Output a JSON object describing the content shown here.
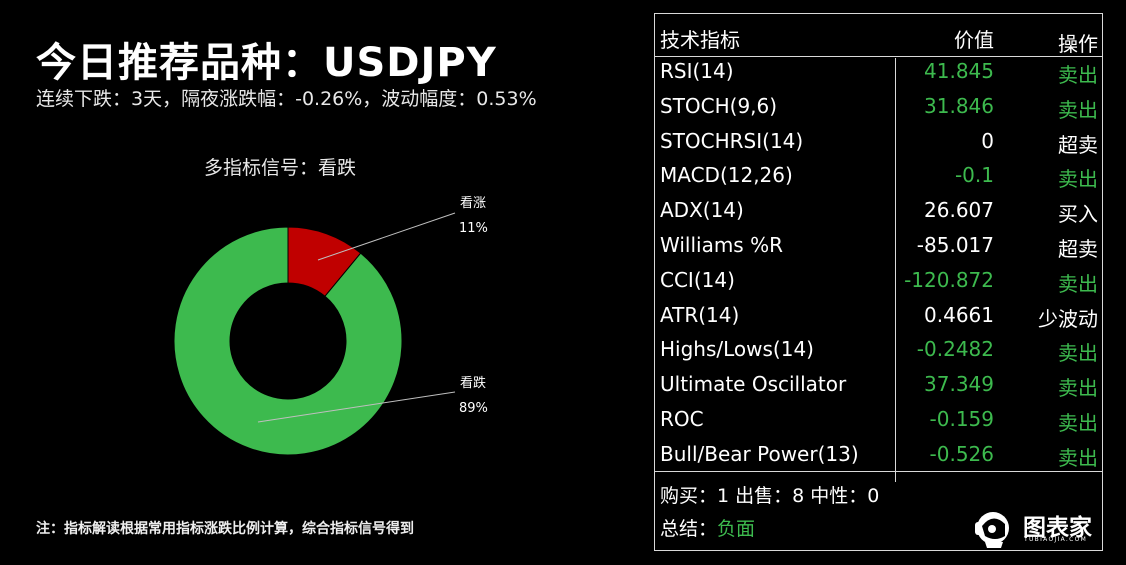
{
  "header": {
    "title": "今日推荐品种：USDJPY",
    "subtitle": "连续下跌：3天，隔夜涨跌幅：-0.26%，波动幅度：0.53%"
  },
  "note": "注：指标解读根据常用指标涨跌比例计算，综合指标信号得到",
  "colors": {
    "down": "#3dba4e",
    "up": "#c00000",
    "background": "#000000",
    "text": "#ffffff"
  },
  "chart_data": {
    "type": "pie",
    "title": "多指标信号：看跌",
    "donut": true,
    "slices": [
      {
        "label": "看涨",
        "value": 11,
        "value_label": "11%",
        "color": "#c00000"
      },
      {
        "label": "看跌",
        "value": 89,
        "value_label": "89%",
        "color": "#3dba4e"
      }
    ]
  },
  "table": {
    "headers": {
      "name": "技术指标",
      "value": "价值",
      "action": "操作"
    },
    "rows": [
      {
        "name": "RSI(14)",
        "value": "41.845",
        "value_color": "#3dba4e",
        "action": "卖出",
        "action_color": "#3dba4e"
      },
      {
        "name": "STOCH(9,6)",
        "value": "31.846",
        "value_color": "#3dba4e",
        "action": "卖出",
        "action_color": "#3dba4e"
      },
      {
        "name": "STOCHRSI(14)",
        "value": "0",
        "value_color": "#ffffff",
        "action": "超卖",
        "action_color": "#ffffff"
      },
      {
        "name": "MACD(12,26)",
        "value": "-0.1",
        "value_color": "#3dba4e",
        "action": "卖出",
        "action_color": "#3dba4e"
      },
      {
        "name": "ADX(14)",
        "value": "26.607",
        "value_color": "#ffffff",
        "action": "买入",
        "action_color": "#ffffff"
      },
      {
        "name": "Williams %R",
        "value": "-85.017",
        "value_color": "#ffffff",
        "action": "超卖",
        "action_color": "#ffffff"
      },
      {
        "name": "CCI(14)",
        "value": "-120.872",
        "value_color": "#3dba4e",
        "action": "卖出",
        "action_color": "#3dba4e"
      },
      {
        "name": "ATR(14)",
        "value": "0.4661",
        "value_color": "#ffffff",
        "action": "少波动",
        "action_color": "#ffffff"
      },
      {
        "name": "Highs/Lows(14)",
        "value": "-0.2482",
        "value_color": "#3dba4e",
        "action": "卖出",
        "action_color": "#3dba4e"
      },
      {
        "name": "Ultimate Oscillator",
        "value": "37.349",
        "value_color": "#3dba4e",
        "action": "卖出",
        "action_color": "#3dba4e"
      },
      {
        "name": "ROC",
        "value": "-0.159",
        "value_color": "#3dba4e",
        "action": "卖出",
        "action_color": "#3dba4e"
      },
      {
        "name": "Bull/Bear Power(13)",
        "value": "-0.526",
        "value_color": "#3dba4e",
        "action": "卖出",
        "action_color": "#3dba4e"
      }
    ],
    "summary_counts": "购买：1 出售：8 中性：0",
    "summary_label": "总结：",
    "summary_value": "负面",
    "summary_value_color": "#3dba4e"
  },
  "logo": {
    "text": "图表家",
    "sub": "TUBIAOJIA.COM"
  }
}
